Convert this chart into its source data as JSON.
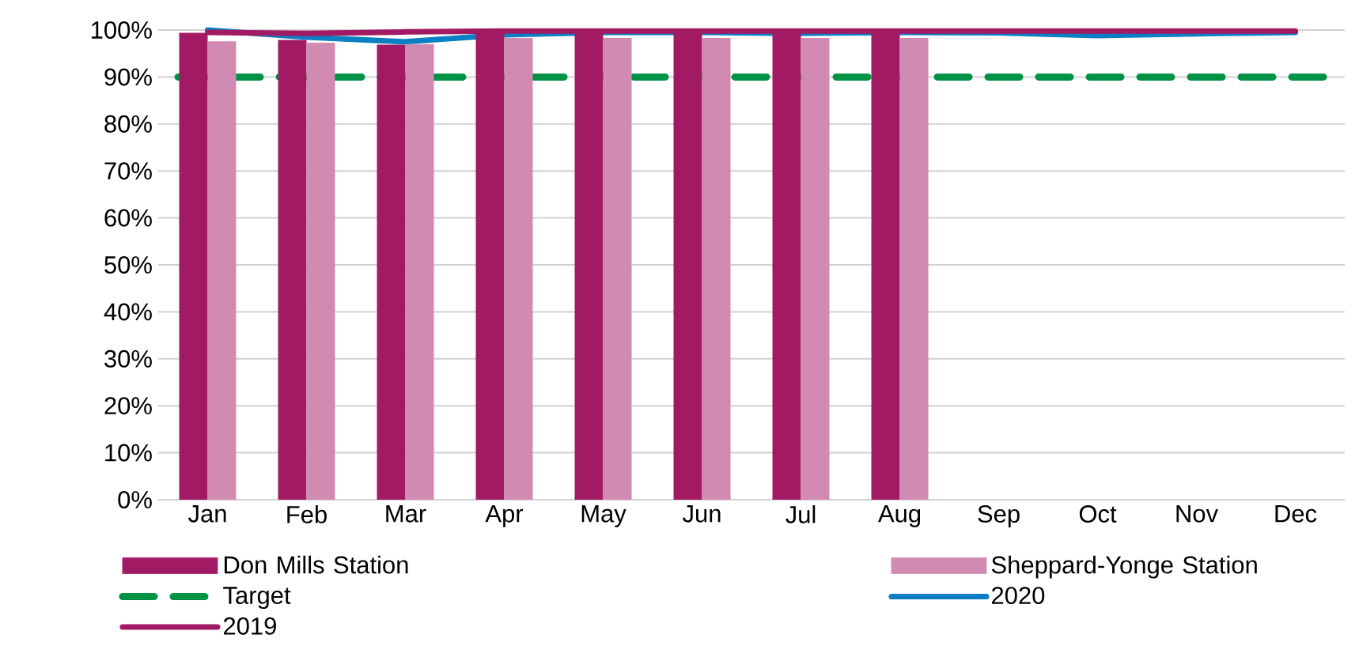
{
  "chart_data": {
    "type": "bar",
    "categories": [
      "Jan",
      "Feb",
      "Mar",
      "Apr",
      "May",
      "Jun",
      "Jul",
      "Aug",
      "Sep",
      "Oct",
      "Nov",
      "Dec"
    ],
    "series": [
      {
        "name": "Don Mills Station",
        "color": "#a21a63",
        "values": [
          99.4,
          97.9,
          96.9,
          100,
          100,
          100,
          100,
          100,
          null,
          null,
          null,
          null
        ]
      },
      {
        "name": "Sheppard-Yonge Station",
        "color": "#d18bb2",
        "values": [
          97.6,
          97.3,
          97,
          98.3,
          98.3,
          98.3,
          98.3,
          98.3,
          null,
          null,
          null,
          null
        ]
      },
      {
        "name": "2020",
        "type": "line",
        "color": "#0a7fc4",
        "values": [
          100,
          98.5,
          97.5,
          99,
          99.5,
          99.5,
          99.3,
          99.5,
          99.4,
          98.8,
          99.2,
          99.5
        ]
      },
      {
        "name": "2019",
        "type": "line",
        "color": "#a21a63",
        "values": [
          99.5,
          99.3,
          99.6,
          99.8,
          99.8,
          99.8,
          99.8,
          99.8,
          99.8,
          99.8,
          99.8,
          99.8
        ]
      }
    ],
    "ref_lines": [
      {
        "axis": "y",
        "value": 90,
        "label": "Target",
        "color": "#009245",
        "line_style": "dashed"
      }
    ],
    "ylim": [
      0,
      100
    ],
    "yticks": [
      {
        "value": 0,
        "label": "0%"
      },
      {
        "value": 10,
        "label": "10%"
      },
      {
        "value": 20,
        "label": "20%"
      },
      {
        "value": 30,
        "label": "30%"
      },
      {
        "value": 40,
        "label": "40%"
      },
      {
        "value": 50,
        "label": "50%"
      },
      {
        "value": 60,
        "label": "60%"
      },
      {
        "value": 70,
        "label": "70%"
      },
      {
        "value": 80,
        "label": "80%"
      },
      {
        "value": 90,
        "label": "90%"
      },
      {
        "value": 100,
        "label": "100%"
      }
    ],
    "grid": "y",
    "legend": "bottom",
    "marker": "none",
    "line_style": "solid"
  }
}
